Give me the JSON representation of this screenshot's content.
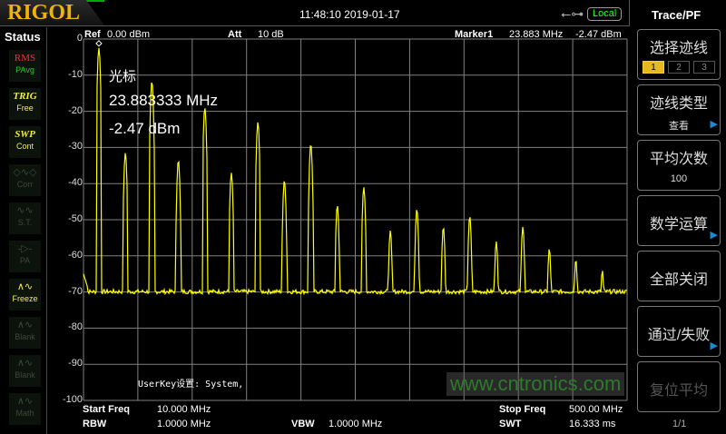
{
  "header": {
    "brand": "RIGOL",
    "datetime": "11:48:10 2019-01-17",
    "usb_icon": "usb-icon",
    "remote_status": "Local"
  },
  "status": {
    "title": "Status",
    "items": [
      {
        "top": "RMS",
        "label": "PAvg",
        "color": "#22cc22",
        "icon": "rms-wave-icon"
      },
      {
        "top": "TRIG",
        "label": "Free",
        "color": "#f0f040",
        "icon": "trig-text"
      },
      {
        "top": "SWP",
        "label": "Cont",
        "color": "#f0f040",
        "icon": "swp-text"
      },
      {
        "top": "◇∿◇",
        "label": "Corr",
        "color": "#3c4a3c",
        "icon": "corr-icon"
      },
      {
        "top": "∿∿",
        "label": "S.T.",
        "color": "#3c4a3c",
        "icon": "source-track-icon"
      },
      {
        "top": "-▷-",
        "label": "PA",
        "color": "#3c4a3c",
        "icon": "preamp-icon"
      },
      {
        "top": "∧∿",
        "label": "Freeze",
        "color": "#f0f040",
        "icon": "freeze-wave-icon"
      },
      {
        "top": "∧∿",
        "label": "Blank",
        "color": "#3c4a3c",
        "icon": "blank-wave-icon"
      },
      {
        "top": "∧∿",
        "label": "Blank",
        "color": "#3c4a3c",
        "icon": "blank-wave-icon"
      },
      {
        "top": "∧∿",
        "label": "Math",
        "color": "#3c4a3c",
        "icon": "math-wave-icon"
      }
    ]
  },
  "plot_header": {
    "ref_label": "Ref",
    "ref_value": "0.00 dBm",
    "att_label": "Att",
    "att_value": "10 dB",
    "marker_label": "Marker1",
    "marker_freq": "23.883 MHz",
    "marker_amp": "-2.47 dBm"
  },
  "marker_readout": {
    "title": "光标",
    "freq": "23.883333 MHz",
    "amp": "-2.47 dBm",
    "marker_number": "1"
  },
  "userkey": "UserKey设置:   System,",
  "bottom": {
    "start_label": "Start Freq",
    "start_value": "10.000 MHz",
    "stop_label": "Stop Freq",
    "stop_value": "500.00 MHz",
    "rbw_label": "RBW",
    "rbw_value": "1.0000 MHz",
    "vbw_label": "VBW",
    "vbw_value": "1.0000 MHz",
    "swt_label": "SWT",
    "swt_value": "16.333 ms",
    "page": "1/1"
  },
  "right_panel": {
    "title": "Trace/PF",
    "buttons": [
      {
        "label": "选择迹线",
        "traces": [
          "1",
          "2",
          "3"
        ],
        "selected": "1"
      },
      {
        "label": "迹线类型",
        "sub": "查看",
        "arrow": true
      },
      {
        "label": "平均次数",
        "sub": "100"
      },
      {
        "label": "数学运算",
        "arrow": true
      },
      {
        "label": "全部关闭"
      },
      {
        "label": "通过/失败",
        "arrow": true
      },
      {
        "label": "复位平均",
        "disabled": true
      }
    ]
  },
  "watermark": "www.cntronics.com",
  "colors": {
    "trace": "#ffff00",
    "grid": "#808080",
    "accent": "#f0c020",
    "arrow": "#1a8ad8"
  },
  "chart_data": {
    "type": "line",
    "xlim": [
      10,
      500
    ],
    "x_unit": "MHz",
    "ylim": [
      -100,
      0
    ],
    "y_unit": "dBm",
    "y_ticks": [
      "0",
      "-10",
      "-20",
      "-30",
      "-40",
      "-50",
      "-60",
      "-70",
      "-80",
      "-90",
      "-100"
    ],
    "grid": true,
    "grid_divisions": 10,
    "noise_floor": -70,
    "peaks": [
      {
        "f": 23.88,
        "a": -2.47
      },
      {
        "f": 47.77,
        "a": -31.5
      },
      {
        "f": 71.65,
        "a": -11.7
      },
      {
        "f": 95.53,
        "a": -33.5
      },
      {
        "f": 119.4,
        "a": -19
      },
      {
        "f": 143.3,
        "a": -37
      },
      {
        "f": 167.2,
        "a": -23
      },
      {
        "f": 191.1,
        "a": -39
      },
      {
        "f": 214.9,
        "a": -29
      },
      {
        "f": 238.8,
        "a": -46
      },
      {
        "f": 262.7,
        "a": -41
      },
      {
        "f": 286.6,
        "a": -53
      },
      {
        "f": 310.5,
        "a": -47
      },
      {
        "f": 334.4,
        "a": -52
      },
      {
        "f": 358.2,
        "a": -49
      },
      {
        "f": 382.1,
        "a": -56
      },
      {
        "f": 406.0,
        "a": -52
      },
      {
        "f": 429.9,
        "a": -58
      },
      {
        "f": 453.8,
        "a": -61
      },
      {
        "f": 477.7,
        "a": -64
      }
    ]
  }
}
